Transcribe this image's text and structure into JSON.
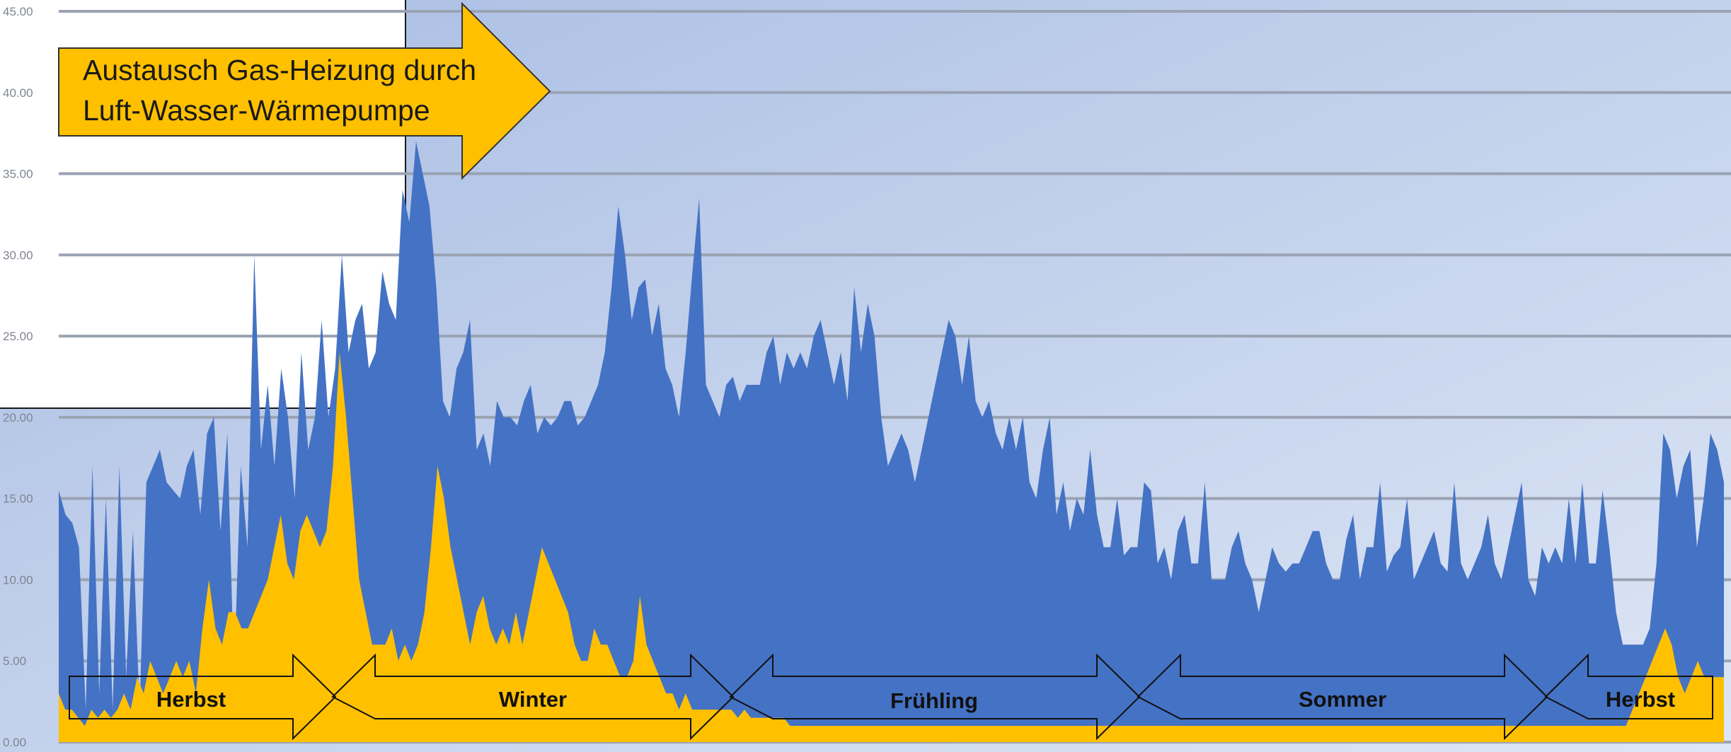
{
  "chart_data": {
    "type": "area",
    "ylim": [
      0,
      45
    ],
    "yticks": [
      "0.00",
      "5.00",
      "10.00",
      "15.00",
      "20.00",
      "25.00",
      "30.00",
      "35.00",
      "40.00",
      "45.00"
    ],
    "colors": {
      "total": "#4472c4",
      "base": "#ffc000",
      "grid": "#9aa3b3",
      "background_top": "#a9bde3",
      "background_bottom": "#dde6f5"
    },
    "series": [
      {
        "key": "total",
        "color": "#4472c4",
        "values": [
          15.5,
          14,
          13.5,
          12,
          2,
          17,
          3,
          15,
          2,
          17,
          4,
          13,
          2,
          16,
          17,
          18,
          16,
          15.5,
          15,
          17,
          18,
          14,
          19,
          20,
          13,
          19,
          4,
          17,
          12,
          30,
          18,
          22,
          17,
          23,
          20,
          15,
          24,
          18,
          20,
          26,
          20,
          23,
          30,
          24,
          26,
          27,
          23,
          24,
          29,
          27,
          26,
          34,
          32,
          37,
          35,
          33,
          28,
          21,
          20,
          23,
          24,
          26,
          18,
          19,
          17,
          21,
          20,
          20,
          19.5,
          21,
          22,
          19,
          20,
          19.5,
          20,
          21,
          21,
          19.5,
          20,
          21,
          22,
          24,
          28,
          33,
          30,
          26,
          28,
          28.5,
          25,
          27,
          23,
          22,
          20,
          24,
          29,
          33.5,
          22,
          21,
          20,
          22,
          22.5,
          21,
          22,
          22,
          22,
          24,
          25,
          22,
          24,
          23,
          24,
          23,
          25,
          26,
          24,
          22,
          24,
          21,
          28,
          24,
          27,
          25,
          20,
          17,
          18,
          19,
          18,
          16,
          18,
          20,
          22,
          24,
          26,
          25,
          22,
          25,
          21,
          20,
          21,
          19,
          18,
          20,
          18,
          20,
          16,
          15,
          18,
          20,
          14,
          16,
          13,
          15,
          14,
          18,
          14,
          12,
          12,
          15,
          11.5,
          12,
          12,
          16,
          15.5,
          11,
          12,
          10,
          13,
          14,
          11,
          11,
          16,
          10,
          10,
          10,
          12,
          13,
          11,
          10,
          8,
          10,
          12,
          11,
          10.5,
          11,
          11,
          12,
          13,
          13,
          11,
          10,
          10,
          12.5,
          14,
          10,
          12,
          12,
          16,
          10.5,
          11.5,
          12,
          15,
          10,
          11,
          12,
          13,
          11,
          10.5,
          16,
          11,
          10,
          11,
          12,
          14,
          11,
          10,
          12,
          14,
          16,
          10,
          9,
          12,
          11,
          12,
          11,
          15,
          11,
          16,
          11,
          11,
          15.5,
          12,
          8,
          6,
          6,
          6,
          6,
          7,
          11,
          19,
          18,
          15,
          17,
          18,
          12,
          15,
          19,
          18,
          16
        ]
      },
      {
        "key": "base",
        "color": "#ffc000",
        "values": [
          3,
          2,
          2,
          1.5,
          1,
          2,
          1.5,
          2,
          1.5,
          2,
          3,
          2,
          4,
          3,
          5,
          4,
          3,
          4,
          5,
          4,
          5,
          3,
          7,
          10,
          7,
          6,
          8,
          8,
          7,
          7,
          8,
          9,
          10,
          12,
          14,
          11,
          10,
          13,
          14,
          13,
          12,
          13,
          17,
          24,
          20,
          15,
          10,
          8,
          6,
          6,
          6,
          7,
          5,
          6,
          5,
          6,
          8,
          12,
          17,
          15,
          12,
          10,
          8,
          6,
          8,
          9,
          7,
          6,
          7,
          6,
          8,
          6,
          8,
          10,
          12,
          11,
          10,
          9,
          8,
          6,
          5,
          5,
          7,
          6,
          6,
          5,
          4,
          4,
          5,
          9,
          6,
          5,
          4,
          3,
          3,
          2,
          3,
          2,
          2,
          2,
          2,
          2,
          2,
          2,
          1.5,
          2,
          1.5,
          1.5,
          1.5,
          1.5,
          1.5,
          1.5,
          1,
          1,
          1,
          1,
          1,
          1,
          1,
          1,
          1,
          1,
          1,
          1,
          1,
          1,
          1,
          1,
          1,
          1,
          1,
          1,
          1,
          1,
          1,
          1,
          1,
          1,
          1,
          1,
          1,
          1,
          1,
          1,
          1,
          1,
          1,
          1,
          1,
          1,
          1,
          1,
          1,
          1,
          1,
          1,
          1,
          1,
          1,
          1,
          1,
          1,
          1,
          1,
          1,
          1,
          1,
          1,
          1,
          1,
          1,
          1,
          1,
          1,
          1,
          1,
          1,
          1,
          1,
          1,
          1,
          1,
          1,
          1,
          1,
          1,
          1,
          1,
          1,
          1,
          1,
          1,
          1,
          1,
          1,
          1,
          1,
          1,
          1,
          1,
          1,
          1,
          1,
          1,
          1,
          1,
          1,
          1,
          1,
          1,
          1,
          1,
          1,
          1,
          1,
          1,
          1,
          1,
          1,
          1,
          1,
          1,
          1,
          1,
          1,
          1,
          1,
          1,
          1,
          1,
          1,
          1,
          1,
          1,
          1,
          1,
          1,
          1,
          1,
          1,
          1,
          2,
          3,
          4,
          5,
          6,
          7,
          6,
          4,
          3,
          4,
          5,
          4,
          4,
          4,
          4
        ]
      }
    ],
    "season_labels": [
      "Herbst",
      "Winter",
      "Frühling",
      "Sommer",
      "Herbst"
    ],
    "callout": {
      "line1": "Austausch Gas-Heizung durch",
      "line2": "Luft-Wasser-Wärmepumpe",
      "fill": "#ffc000"
    }
  }
}
